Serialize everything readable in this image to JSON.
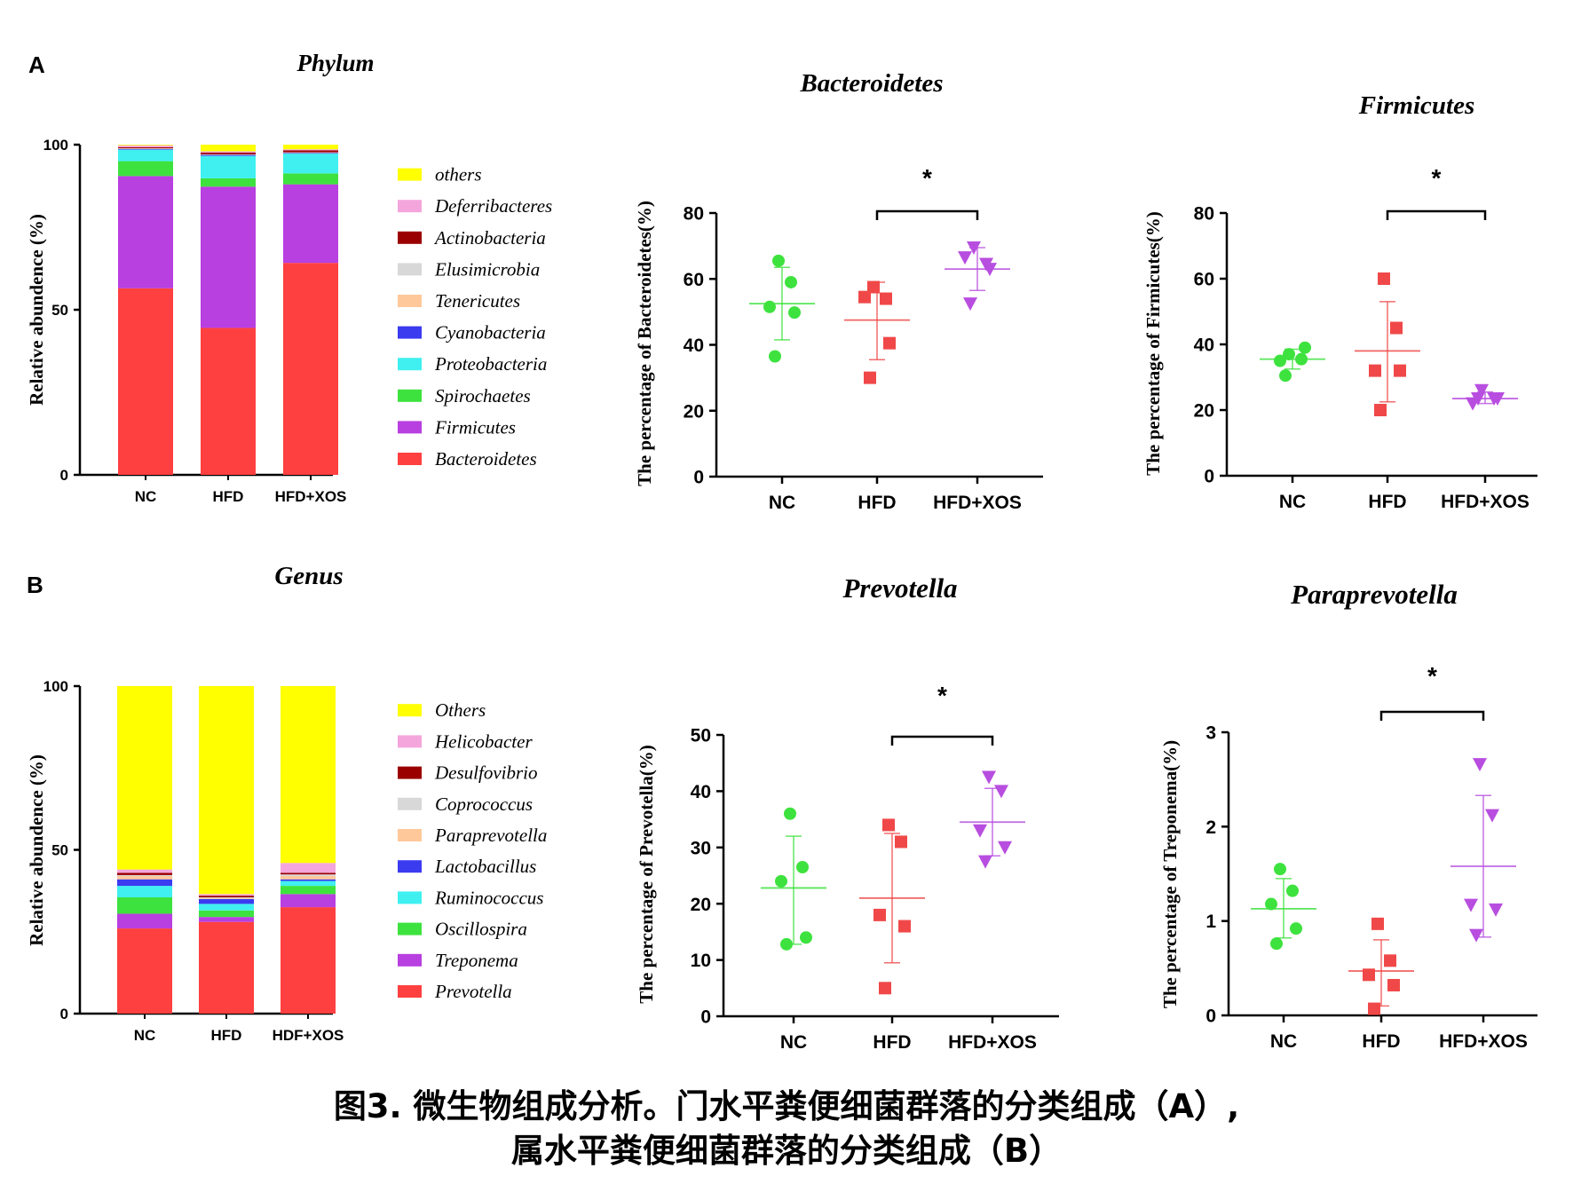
{
  "panels": {
    "A": "A",
    "B": "B"
  },
  "caption": {
    "line1": "图3. 微生物组成分析。门水平粪便细菌群落的分类组成（A）,",
    "line2": "属水平粪便细菌群落的分类组成（B）"
  },
  "chart_data": [
    {
      "id": "phylum",
      "type": "bar",
      "stacked": true,
      "title": "Phylum",
      "ylabel": "Relative  abundence (%)",
      "xlabel": "",
      "ylim": [
        0,
        100
      ],
      "yticks": [
        0,
        50,
        100
      ],
      "categories": [
        "NC",
        "HFD",
        "HFD+XOS"
      ],
      "series": [
        {
          "name": "Bacteroidetes",
          "color": "#ff4040",
          "values": [
            56.5,
            44.5,
            64.2
          ]
        },
        {
          "name": "Firmicutes",
          "color": "#b83fe0",
          "values": [
            34.0,
            42.8,
            23.8
          ]
        },
        {
          "name": "Spirochaetes",
          "color": "#3ee23e",
          "values": [
            4.5,
            2.5,
            3.3
          ]
        },
        {
          "name": "Proteobacteria",
          "color": "#40f0f0",
          "values": [
            3.5,
            6.8,
            6.0
          ]
        },
        {
          "name": "Cyanobacteria",
          "color": "#3b3bf0",
          "values": [
            0.2,
            0.3,
            0.2
          ]
        },
        {
          "name": "Tenericutes",
          "color": "#ffc89a",
          "values": [
            0.1,
            0.1,
            0.1
          ]
        },
        {
          "name": "Elusimicrobia",
          "color": "#d8d8d8",
          "values": [
            0.1,
            0.1,
            0.1
          ]
        },
        {
          "name": "Actinobacteria",
          "color": "#9b0000",
          "values": [
            0.3,
            0.5,
            0.6
          ]
        },
        {
          "name": "Deferribacteres",
          "color": "#f4a6dc",
          "values": [
            0.6,
            0.4,
            0.3
          ]
        },
        {
          "name": "others",
          "color": "#ffff00",
          "values": [
            0.2,
            2.0,
            1.4
          ]
        }
      ]
    },
    {
      "id": "bacteroidetes",
      "type": "scatter",
      "title": "Bacteroidetes",
      "ylabel": "The percentage of Bacteroidetes(%)",
      "xlabel": "",
      "ylim": [
        0,
        80
      ],
      "yticks": [
        0,
        20,
        40,
        60,
        80
      ],
      "categories": [
        "NC",
        "HFD",
        "HFD+XOS"
      ],
      "groups": [
        {
          "name": "NC",
          "color": "#3ee23e",
          "marker": "circle",
          "points": [
            65.5,
            59.0,
            51.5,
            49.8,
            36.5
          ],
          "mean": 52.5,
          "sd": [
            41.5,
            63.5
          ]
        },
        {
          "name": "HFD",
          "color": "#f04848",
          "marker": "square",
          "points": [
            57.5,
            54.0,
            54.5,
            40.5,
            30.0
          ],
          "mean": 47.5,
          "sd": [
            35.5,
            59.0
          ]
        },
        {
          "name": "HFD+XOS",
          "color": "#b84ee0",
          "marker": "triangle",
          "points": [
            69.5,
            64.5,
            66.5,
            63.0,
            52.5
          ],
          "mean": 63.0,
          "sd": [
            56.5,
            69.5
          ]
        }
      ],
      "significance": {
        "from": "HFD",
        "to": "HFD+XOS",
        "label": "*"
      }
    },
    {
      "id": "firmicutes",
      "type": "scatter",
      "title": "Firmicutes",
      "ylabel": "The percentage of Firmicutes(%)",
      "xlabel": "",
      "ylim": [
        0,
        80
      ],
      "yticks": [
        0,
        20,
        40,
        60,
        80
      ],
      "categories": [
        "NC",
        "HFD",
        "HFD+XOS"
      ],
      "groups": [
        {
          "name": "NC",
          "color": "#3ee23e",
          "marker": "circle",
          "points": [
            37.0,
            35.5,
            35.0,
            39.0,
            30.5
          ],
          "mean": 35.5,
          "sd": [
            32.5,
            38.5
          ]
        },
        {
          "name": "HFD",
          "color": "#f04848",
          "marker": "square",
          "points": [
            60.0,
            45.0,
            32.0,
            32.0,
            20.0
          ],
          "mean": 38.0,
          "sd": [
            22.5,
            53.0
          ]
        },
        {
          "name": "HFD+XOS",
          "color": "#b84ee0",
          "marker": "triangle",
          "points": [
            26.0,
            23.5,
            22.0,
            23.5,
            23.5
          ],
          "mean": 23.5,
          "sd": [
            22.0,
            25.5
          ]
        }
      ],
      "significance": {
        "from": "HFD",
        "to": "HFD+XOS",
        "label": "*"
      }
    },
    {
      "id": "genus",
      "type": "bar",
      "stacked": true,
      "title": "Genus",
      "ylabel": "Relative  abundence (%)",
      "xlabel": "",
      "ylim": [
        0,
        100
      ],
      "yticks": [
        0,
        50,
        100
      ],
      "categories": [
        "NC",
        "HFD",
        "HDF+XOS"
      ],
      "series": [
        {
          "name": "Prevotella",
          "color": "#ff4040",
          "values": [
            26.0,
            28.0,
            32.5
          ]
        },
        {
          "name": "Treponema",
          "color": "#b83fe0",
          "values": [
            4.5,
            1.5,
            4.0
          ]
        },
        {
          "name": "Oscillospira",
          "color": "#3ee23e",
          "values": [
            5.0,
            2.0,
            2.5
          ]
        },
        {
          "name": "Ruminococcus",
          "color": "#40f0f0",
          "values": [
            3.5,
            2.0,
            1.5
          ]
        },
        {
          "name": "Lactobacillus",
          "color": "#3b3bf0",
          "values": [
            2.0,
            1.5,
            0.5
          ]
        },
        {
          "name": "Paraprevotella",
          "color": "#ffc89a",
          "values": [
            1.0,
            0.3,
            1.0
          ]
        },
        {
          "name": "Coprococcus",
          "color": "#d8d8d8",
          "values": [
            0.3,
            0.2,
            0.5
          ]
        },
        {
          "name": "Desulfovibrio",
          "color": "#9b0000",
          "values": [
            0.7,
            0.5,
            0.5
          ]
        },
        {
          "name": "Helicobacter",
          "color": "#f4a6dc",
          "values": [
            1.0,
            0.5,
            3.0
          ]
        },
        {
          "name": "Others",
          "color": "#ffff00",
          "values": [
            56.0,
            63.5,
            54.0
          ]
        }
      ]
    },
    {
      "id": "prevotella",
      "type": "scatter",
      "title": "Prevotella",
      "ylabel": "The percentage of Prevotella(%)",
      "xlabel": "",
      "ylim": [
        0,
        50
      ],
      "yticks": [
        0,
        10,
        20,
        30,
        40,
        50
      ],
      "categories": [
        "NC",
        "HFD",
        "HFD+XOS"
      ],
      "groups": [
        {
          "name": "NC",
          "color": "#3ee23e",
          "marker": "circle",
          "points": [
            36.0,
            26.5,
            24.0,
            14.0,
            12.8
          ],
          "mean": 22.8,
          "sd": [
            12.8,
            32.0
          ]
        },
        {
          "name": "HFD",
          "color": "#f04848",
          "marker": "square",
          "points": [
            34.0,
            31.0,
            18.0,
            16.0,
            5.0
          ],
          "mean": 21.0,
          "sd": [
            9.5,
            32.5
          ]
        },
        {
          "name": "HFD+XOS",
          "color": "#b84ee0",
          "marker": "triangle",
          "points": [
            42.5,
            40.0,
            33.0,
            30.0,
            27.5
          ],
          "mean": 34.5,
          "sd": [
            28.5,
            40.5
          ]
        }
      ],
      "significance": {
        "from": "HFD",
        "to": "HFD+XOS",
        "label": "*"
      }
    },
    {
      "id": "paraprevotella",
      "type": "scatter",
      "title": "Paraprevotella",
      "ylabel": "The percentage of Treponema(%)",
      "xlabel": "",
      "ylim": [
        0,
        3
      ],
      "yticks": [
        0,
        1,
        2,
        3
      ],
      "categories": [
        "NC",
        "HFD",
        "HFD+XOS"
      ],
      "groups": [
        {
          "name": "NC",
          "color": "#3ee23e",
          "marker": "circle",
          "points": [
            1.55,
            1.32,
            1.18,
            0.92,
            0.76
          ],
          "mean": 1.13,
          "sd": [
            0.82,
            1.45
          ]
        },
        {
          "name": "HFD",
          "color": "#f04848",
          "marker": "square",
          "points": [
            0.97,
            0.58,
            0.43,
            0.32,
            0.07
          ],
          "mean": 0.47,
          "sd": [
            0.1,
            0.8
          ]
        },
        {
          "name": "HFD+XOS",
          "color": "#b84ee0",
          "marker": "triangle",
          "points": [
            2.66,
            2.12,
            1.17,
            1.12,
            0.85
          ],
          "mean": 1.58,
          "sd": [
            0.83,
            2.33
          ]
        }
      ],
      "significance": {
        "from": "HFD",
        "to": "HFD+XOS",
        "label": "*"
      }
    }
  ]
}
